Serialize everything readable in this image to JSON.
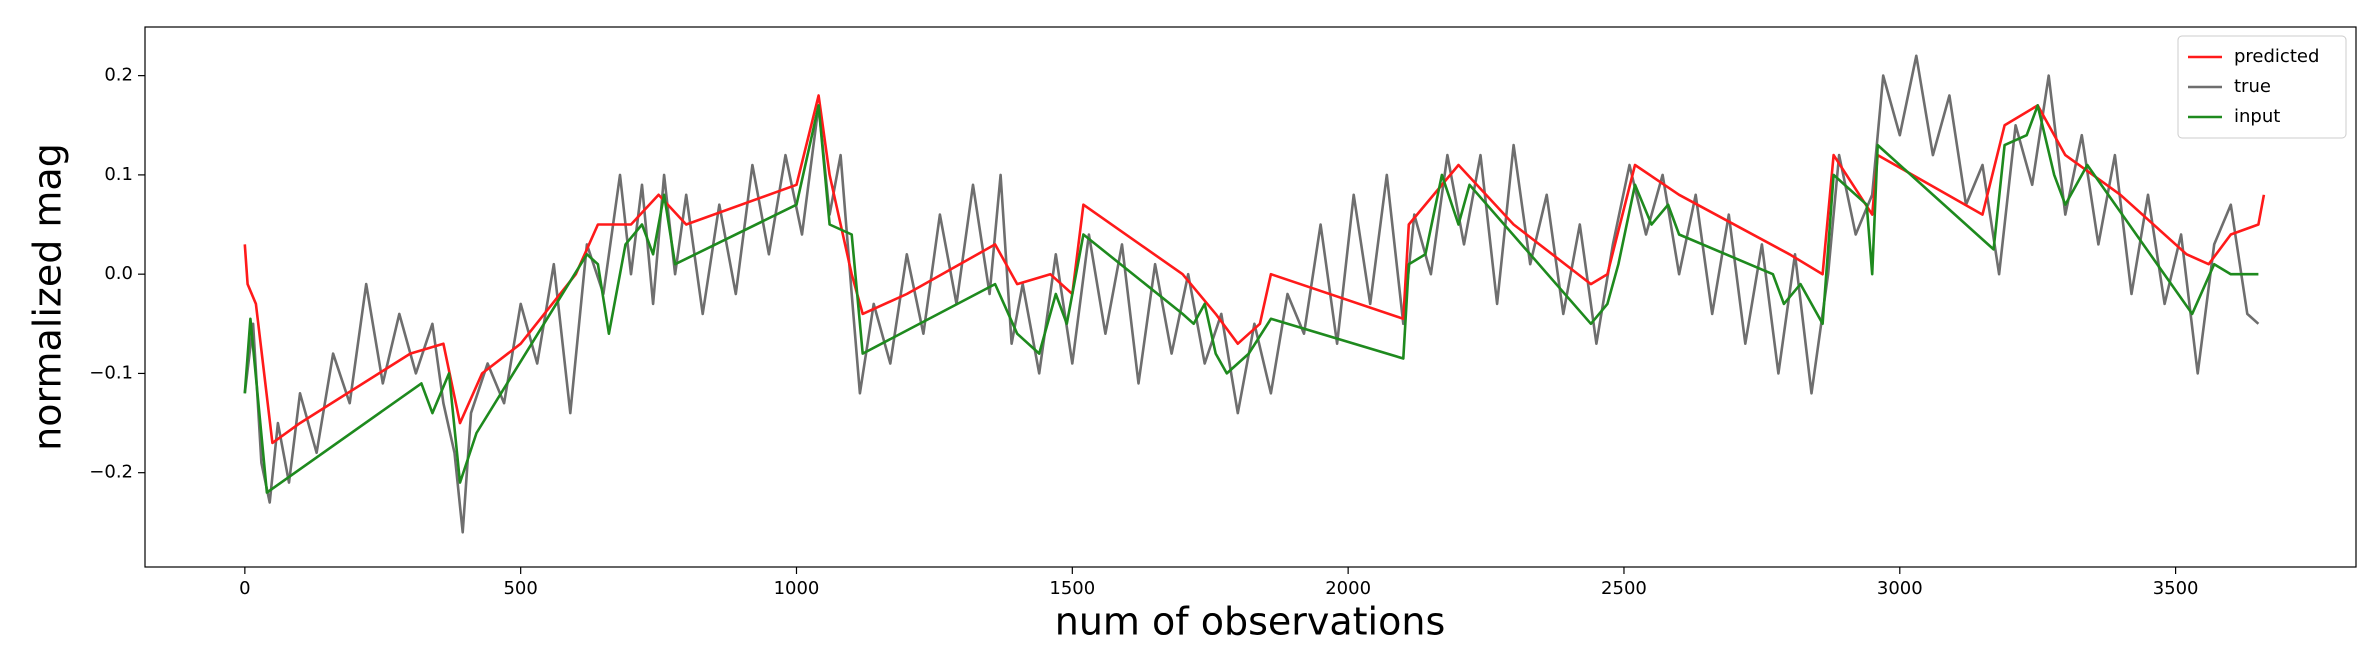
{
  "chart_data": {
    "type": "line",
    "xlabel": "num of observations",
    "ylabel": "normalized mag",
    "xlim": [
      -181,
      3827
    ],
    "ylim": [
      -0.295,
      0.249
    ],
    "xticks": [
      0,
      500,
      1000,
      1500,
      2000,
      2500,
      3000,
      3500
    ],
    "yticks": [
      {
        "value": -0.2,
        "label": "−0.2"
      },
      {
        "value": -0.1,
        "label": "−0.1"
      },
      {
        "value": 0,
        "label": "0.0"
      },
      0.1,
      0.2
    ],
    "legend": "upper right",
    "series": [
      {
        "name": "predicted",
        "color": "#ff1a1a",
        "x": [
          0,
          5,
          20,
          50,
          100,
          300,
          360,
          390,
          430,
          500,
          600,
          640,
          700,
          750,
          800,
          1000,
          1040,
          1060,
          1100,
          1120,
          1200,
          1360,
          1400,
          1460,
          1500,
          1520,
          1700,
          1760,
          1800,
          1840,
          1860,
          2100,
          2110,
          2200,
          2300,
          2440,
          2470,
          2520,
          2600,
          2800,
          2860,
          2880,
          2950,
          2960,
          3150,
          3190,
          3250,
          3300,
          3400,
          3520,
          3560,
          3600,
          3650,
          3660
        ],
        "values": [
          0.03,
          -0.01,
          -0.03,
          -0.17,
          -0.15,
          -0.08,
          -0.07,
          -0.15,
          -0.1,
          -0.07,
          0.0,
          0.05,
          0.05,
          0.08,
          0.05,
          0.09,
          0.18,
          0.1,
          0.0,
          -0.04,
          -0.02,
          0.03,
          -0.01,
          0.0,
          -0.02,
          0.07,
          0.0,
          -0.04,
          -0.07,
          -0.05,
          0.0,
          -0.045,
          0.05,
          0.11,
          0.05,
          -0.01,
          0.0,
          0.11,
          0.08,
          0.02,
          0.0,
          0.12,
          0.06,
          0.12,
          0.06,
          0.15,
          0.17,
          0.12,
          0.08,
          0.02,
          0.01,
          0.04,
          0.05,
          0.08
        ]
      },
      {
        "name": "true",
        "color": "#6e6e6e",
        "x": [
          0,
          15,
          30,
          45,
          60,
          80,
          100,
          130,
          160,
          190,
          220,
          250,
          280,
          310,
          340,
          360,
          380,
          395,
          410,
          440,
          470,
          500,
          530,
          560,
          590,
          620,
          650,
          680,
          700,
          720,
          740,
          760,
          780,
          800,
          830,
          860,
          890,
          920,
          950,
          980,
          1010,
          1040,
          1060,
          1080,
          1100,
          1115,
          1140,
          1170,
          1200,
          1230,
          1260,
          1290,
          1320,
          1350,
          1370,
          1390,
          1410,
          1440,
          1470,
          1500,
          1530,
          1560,
          1590,
          1620,
          1650,
          1680,
          1710,
          1740,
          1770,
          1800,
          1830,
          1860,
          1890,
          1920,
          1950,
          1980,
          2010,
          2040,
          2070,
          2100,
          2120,
          2150,
          2180,
          2210,
          2240,
          2270,
          2300,
          2330,
          2360,
          2390,
          2420,
          2450,
          2480,
          2510,
          2540,
          2570,
          2600,
          2630,
          2660,
          2690,
          2720,
          2750,
          2780,
          2810,
          2840,
          2870,
          2890,
          2920,
          2950,
          2970,
          3000,
          3030,
          3060,
          3090,
          3120,
          3150,
          3180,
          3210,
          3240,
          3270,
          3300,
          3330,
          3360,
          3390,
          3420,
          3450,
          3480,
          3510,
          3540,
          3570,
          3600,
          3630,
          3650
        ],
        "values": [
          -0.12,
          -0.05,
          -0.19,
          -0.23,
          -0.15,
          -0.21,
          -0.12,
          -0.18,
          -0.08,
          -0.13,
          -0.01,
          -0.11,
          -0.04,
          -0.1,
          -0.05,
          -0.13,
          -0.18,
          -0.26,
          -0.14,
          -0.09,
          -0.13,
          -0.03,
          -0.09,
          0.01,
          -0.14,
          0.03,
          -0.02,
          0.1,
          0.0,
          0.09,
          -0.03,
          0.1,
          0.0,
          0.08,
          -0.04,
          0.07,
          -0.02,
          0.11,
          0.02,
          0.12,
          0.04,
          0.17,
          0.06,
          0.12,
          -0.02,
          -0.12,
          -0.03,
          -0.09,
          0.02,
          -0.06,
          0.06,
          -0.03,
          0.09,
          -0.02,
          0.1,
          -0.07,
          -0.01,
          -0.1,
          0.02,
          -0.09,
          0.04,
          -0.06,
          0.03,
          -0.11,
          0.01,
          -0.08,
          0.0,
          -0.09,
          -0.04,
          -0.14,
          -0.05,
          -0.12,
          -0.02,
          -0.06,
          0.05,
          -0.07,
          0.08,
          -0.03,
          0.1,
          -0.05,
          0.06,
          0.0,
          0.12,
          0.03,
          0.12,
          -0.03,
          0.13,
          0.01,
          0.08,
          -0.04,
          0.05,
          -0.07,
          0.03,
          0.11,
          0.04,
          0.1,
          0.0,
          0.08,
          -0.04,
          0.06,
          -0.07,
          0.03,
          -0.1,
          0.02,
          -0.12,
          0.0,
          0.12,
          0.04,
          0.08,
          0.2,
          0.14,
          0.22,
          0.12,
          0.18,
          0.07,
          0.11,
          0.0,
          0.15,
          0.09,
          0.2,
          0.06,
          0.14,
          0.03,
          0.12,
          -0.02,
          0.08,
          -0.03,
          0.04,
          -0.1,
          0.03,
          0.07,
          -0.04,
          -0.05
        ]
      },
      {
        "name": "input",
        "color": "#1e8a1e",
        "x": [
          0,
          10,
          40,
          320,
          340,
          370,
          390,
          420,
          620,
          640,
          660,
          690,
          720,
          740,
          760,
          780,
          1000,
          1040,
          1060,
          1100,
          1120,
          1360,
          1400,
          1440,
          1470,
          1490,
          1520,
          1700,
          1720,
          1740,
          1760,
          1780,
          1820,
          1860,
          2100,
          2110,
          2140,
          2170,
          2200,
          2220,
          2440,
          2470,
          2490,
          2520,
          2550,
          2580,
          2600,
          2770,
          2790,
          2820,
          2860,
          2880,
          2940,
          2950,
          2960,
          3170,
          3190,
          3230,
          3250,
          3280,
          3300,
          3340,
          3530,
          3570,
          3600,
          3650
        ],
        "values": [
          -0.12,
          -0.045,
          -0.22,
          -0.11,
          -0.14,
          -0.1,
          -0.21,
          -0.16,
          0.02,
          0.01,
          -0.06,
          0.03,
          0.05,
          0.02,
          0.08,
          0.01,
          0.07,
          0.17,
          0.05,
          0.04,
          -0.08,
          -0.01,
          -0.06,
          -0.08,
          -0.02,
          -0.05,
          0.04,
          -0.04,
          -0.05,
          -0.03,
          -0.08,
          -0.1,
          -0.08,
          -0.045,
          -0.085,
          0.01,
          0.02,
          0.1,
          0.05,
          0.09,
          -0.05,
          -0.03,
          0.01,
          0.09,
          0.05,
          0.07,
          0.04,
          0.0,
          -0.03,
          -0.01,
          -0.05,
          0.1,
          0.07,
          0.0,
          0.13,
          0.025,
          0.13,
          0.14,
          0.17,
          0.1,
          0.07,
          0.11,
          -0.04,
          0.01,
          0.0,
          0.0
        ]
      }
    ]
  }
}
